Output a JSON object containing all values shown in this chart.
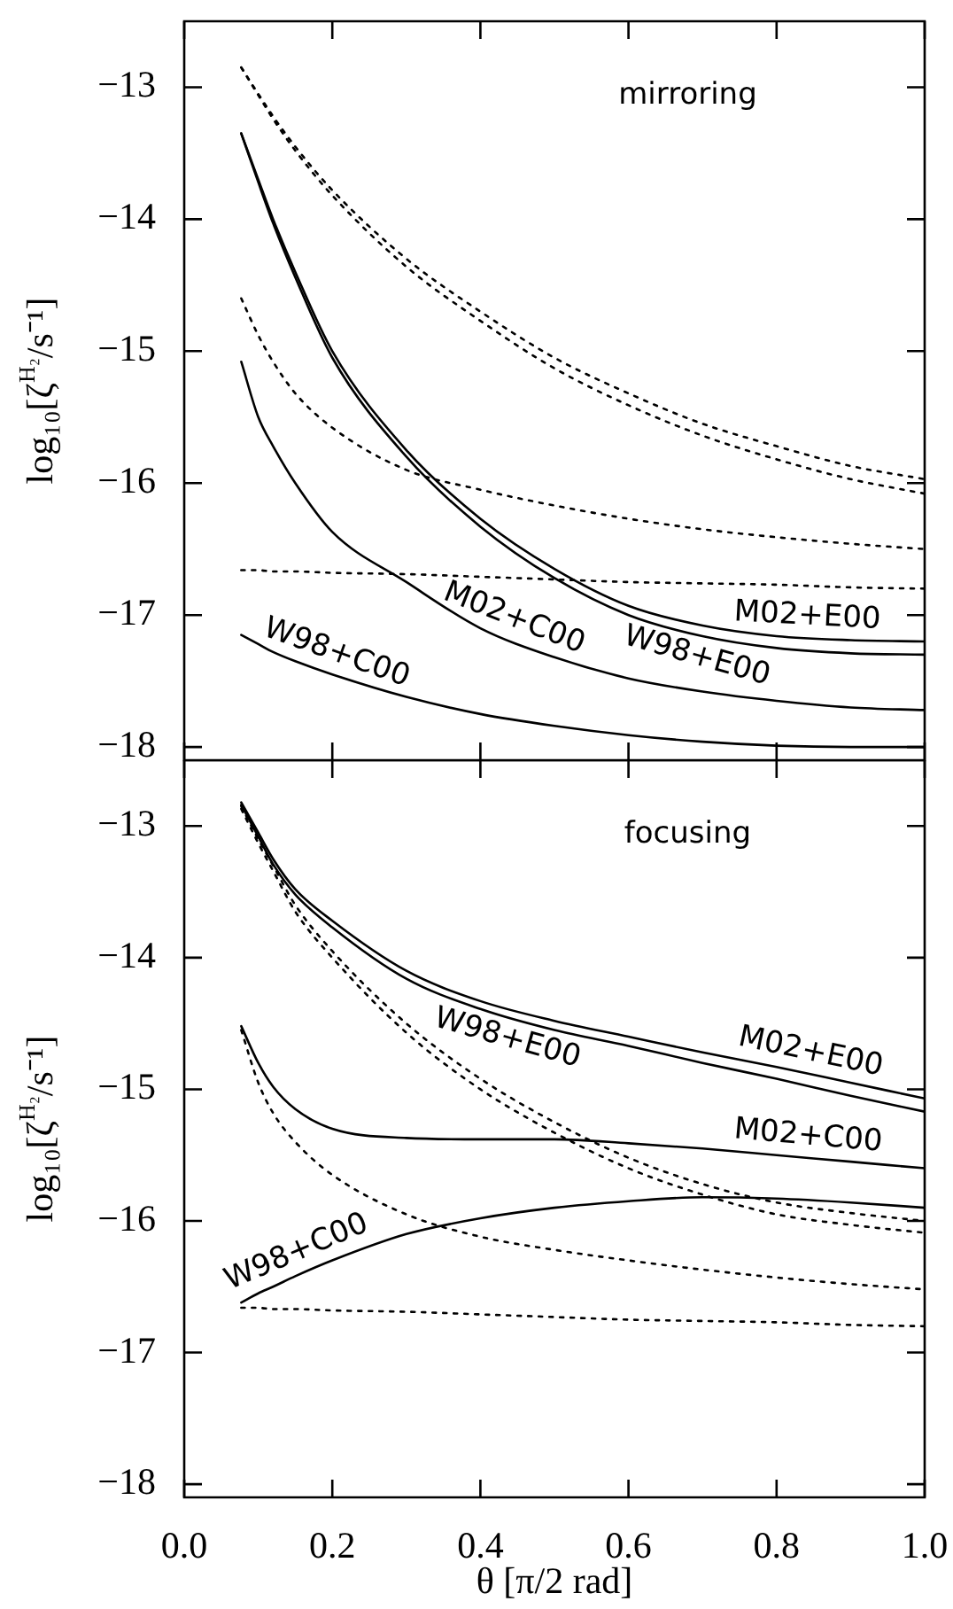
{
  "chart_data": [
    {
      "type": "line",
      "ylabel": "log₁₀[ζ$^{H₂}$/s⁻¹]",
      "annotations": [
        "mirroring"
      ],
      "tick_labels": "y",
      "xlim": [
        0,
        1
      ],
      "xticks": [
        0,
        0.2,
        0.4,
        0.6,
        0.8,
        1
      ],
      "ylim": [
        -18.1,
        -12.5
      ],
      "yticks": [
        -18,
        -17,
        -16,
        -15,
        -14,
        -13
      ],
      "x": [
        0.077,
        0.1,
        0.12,
        0.15,
        0.2,
        0.3,
        0.4,
        0.5,
        0.6,
        0.7,
        0.8,
        0.9,
        1.0
      ],
      "series": [
        {
          "name": "M02+E00",
          "color": "#000000",
          "line_style": "solid",
          "values": [
            -13.35,
            -13.7,
            -14.0,
            -14.4,
            -15.0,
            -15.75,
            -16.27,
            -16.65,
            -16.93,
            -17.08,
            -17.16,
            -17.19,
            -17.2
          ]
        },
        {
          "name": "W98+E00",
          "color": "#000000",
          "line_style": "solid",
          "values": [
            -13.35,
            -13.72,
            -14.03,
            -14.44,
            -15.05,
            -15.8,
            -16.33,
            -16.72,
            -17.0,
            -17.16,
            -17.25,
            -17.29,
            -17.3
          ]
        },
        {
          "name": "M02+C00",
          "color": "#000000",
          "line_style": "solid",
          "values": [
            -15.08,
            -15.5,
            -15.72,
            -16.0,
            -16.37,
            -16.75,
            -17.1,
            -17.32,
            -17.48,
            -17.58,
            -17.65,
            -17.7,
            -17.72
          ]
        },
        {
          "name": "W98+C00",
          "color": "#000000",
          "line_style": "solid",
          "values": [
            -17.15,
            -17.22,
            -17.28,
            -17.35,
            -17.45,
            -17.62,
            -17.75,
            -17.84,
            -17.91,
            -17.96,
            -17.99,
            -18.0,
            -18.0
          ]
        },
        {
          "color": "#000000",
          "line_style": "dotted",
          "values": [
            -12.85,
            -13.05,
            -13.22,
            -13.45,
            -13.78,
            -14.3,
            -14.7,
            -15.05,
            -15.32,
            -15.55,
            -15.72,
            -15.87,
            -15.97
          ]
        },
        {
          "color": "#000000",
          "line_style": "dotted",
          "values": [
            -12.85,
            -13.06,
            -13.24,
            -13.48,
            -13.82,
            -14.36,
            -14.77,
            -15.13,
            -15.41,
            -15.64,
            -15.82,
            -15.97,
            -16.08
          ]
        },
        {
          "color": "#000000",
          "line_style": "dotted",
          "values": [
            -14.6,
            -14.88,
            -15.08,
            -15.32,
            -15.58,
            -15.9,
            -16.05,
            -16.17,
            -16.27,
            -16.35,
            -16.41,
            -16.46,
            -16.5
          ]
        },
        {
          "color": "#000000",
          "line_style": "dotted",
          "values": [
            -16.66,
            -16.66,
            -16.67,
            -16.67,
            -16.68,
            -16.69,
            -16.71,
            -16.73,
            -16.75,
            -16.76,
            -16.77,
            -16.79,
            -16.8
          ]
        }
      ]
    },
    {
      "type": "line",
      "xlabel": "θ [π/2 rad]",
      "ylabel": "log₁₀[ζ$^{H₂}$/s⁻¹]",
      "annotations": [
        "focusing"
      ],
      "xlim": [
        0,
        1
      ],
      "xticks": [
        {
          "value": 0,
          "label": "0.0"
        },
        {
          "value": 0.2,
          "label": "0.2"
        },
        {
          "value": 0.4,
          "label": "0.4"
        },
        {
          "value": 0.6,
          "label": "0.6"
        },
        {
          "value": 0.8,
          "label": "0.8"
        },
        {
          "value": 1,
          "label": "1.0"
        }
      ],
      "ylim": [
        -18.1,
        -12.5
      ],
      "yticks": [
        -18,
        -17,
        -16,
        -15,
        -14,
        -13
      ],
      "x": [
        0.077,
        0.1,
        0.12,
        0.15,
        0.2,
        0.3,
        0.4,
        0.5,
        0.6,
        0.7,
        0.8,
        0.9,
        1.0
      ],
      "series": [
        {
          "name": "M02+E00",
          "color": "#000000",
          "line_style": "solid",
          "values": [
            -12.82,
            -13.05,
            -13.25,
            -13.48,
            -13.72,
            -14.1,
            -14.33,
            -14.48,
            -14.6,
            -14.72,
            -14.83,
            -14.95,
            -15.07
          ]
        },
        {
          "name": "W98+E00",
          "color": "#000000",
          "line_style": "solid",
          "values": [
            -12.84,
            -13.08,
            -13.29,
            -13.52,
            -13.77,
            -14.16,
            -14.39,
            -14.55,
            -14.67,
            -14.8,
            -14.92,
            -15.05,
            -15.17
          ]
        },
        {
          "name": "M02+C00",
          "color": "#000000",
          "line_style": "solid",
          "values": [
            -14.52,
            -14.8,
            -14.98,
            -15.15,
            -15.3,
            -15.37,
            -15.38,
            -15.38,
            -15.41,
            -15.45,
            -15.5,
            -15.55,
            -15.6
          ]
        },
        {
          "name": "W98+C00",
          "color": "#000000",
          "line_style": "solid",
          "values": [
            -16.62,
            -16.55,
            -16.5,
            -16.42,
            -16.3,
            -16.1,
            -15.98,
            -15.9,
            -15.85,
            -15.82,
            -15.83,
            -15.86,
            -15.9
          ]
        },
        {
          "color": "#000000",
          "line_style": "dotted",
          "values": [
            -12.85,
            -13.1,
            -13.3,
            -13.6,
            -13.95,
            -14.5,
            -14.92,
            -15.25,
            -15.52,
            -15.72,
            -15.86,
            -15.94,
            -16.0
          ]
        },
        {
          "color": "#000000",
          "line_style": "dotted",
          "values": [
            -12.87,
            -13.13,
            -13.34,
            -13.65,
            -14.0,
            -14.57,
            -15.0,
            -15.33,
            -15.6,
            -15.8,
            -15.95,
            -16.03,
            -16.09
          ]
        },
        {
          "color": "#000000",
          "line_style": "dotted",
          "values": [
            -14.55,
            -14.95,
            -15.18,
            -15.4,
            -15.65,
            -15.95,
            -16.12,
            -16.22,
            -16.3,
            -16.37,
            -16.43,
            -16.48,
            -16.52
          ]
        },
        {
          "color": "#000000",
          "line_style": "dotted",
          "values": [
            -16.66,
            -16.66,
            -16.67,
            -16.67,
            -16.68,
            -16.69,
            -16.71,
            -16.73,
            -16.75,
            -16.76,
            -16.77,
            -16.79,
            -16.8
          ]
        }
      ]
    }
  ]
}
